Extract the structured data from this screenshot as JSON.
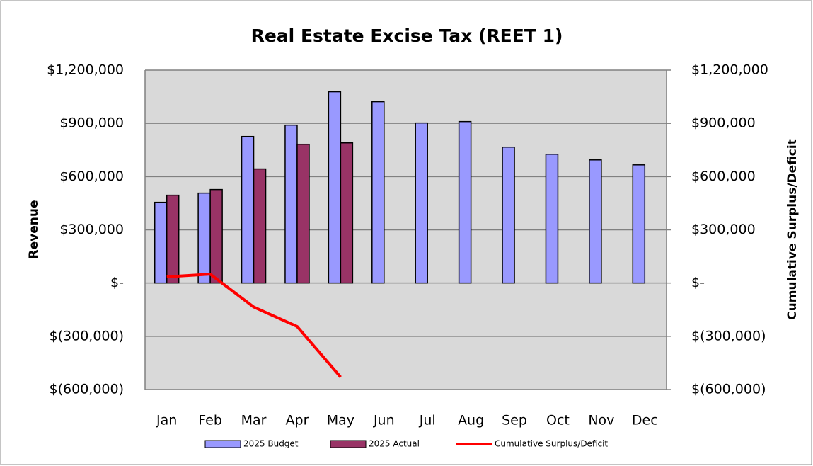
{
  "chart_data": {
    "type": "bar",
    "title": "Real Estate Excise Tax (REET 1)",
    "y_label": "Revenue",
    "y2_label": "Cumulative Surplus/Deficit",
    "categories": [
      "Jan",
      "Feb",
      "Mar",
      "Apr",
      "May",
      "Jun",
      "Jul",
      "Aug",
      "Sep",
      "Oct",
      "Nov",
      "Dec"
    ],
    "series": [
      {
        "name": "2025 Budget",
        "color": "#9999ff",
        "type": "bar",
        "values": [
          455000,
          507000,
          826000,
          890000,
          1078000,
          1022000,
          902000,
          910000,
          766000,
          726000,
          694000,
          666000
        ]
      },
      {
        "name": "2025 Actual",
        "color": "#993366",
        "type": "bar",
        "values": [
          495000,
          527000,
          643000,
          782000,
          790000,
          null,
          null,
          null,
          null,
          null,
          null,
          null
        ]
      },
      {
        "name": "Cumulative Surplus/Deficit",
        "color": "#ff0000",
        "type": "line",
        "axis": "y2",
        "values": [
          35000,
          50000,
          -135000,
          -245000,
          -530000,
          null,
          null,
          null,
          null,
          null,
          null,
          null
        ]
      }
    ],
    "ylim": [
      -600000,
      1200000
    ],
    "yticks": [
      {
        "value": -600000,
        "label": "$(600,000)"
      },
      {
        "value": -300000,
        "label": "$(300,000)"
      },
      {
        "value": 0,
        "label": "$-"
      },
      {
        "value": 300000,
        "label": "$300,000"
      },
      {
        "value": 600000,
        "label": "$600,000"
      },
      {
        "value": 900000,
        "label": "$900,000"
      },
      {
        "value": 1200000,
        "label": "$1,200,000"
      }
    ],
    "y2lim": [
      -600000,
      1200000
    ],
    "y2ticks": [
      {
        "value": -600000,
        "label": "$(600,000)"
      },
      {
        "value": -300000,
        "label": "$(300,000)"
      },
      {
        "value": 0,
        "label": "$-"
      },
      {
        "value": 300000,
        "label": "$300,000"
      },
      {
        "value": 600000,
        "label": "$600,000"
      },
      {
        "value": 900000,
        "label": "$900,000"
      },
      {
        "value": 1200000,
        "label": "$1,200,000"
      }
    ],
    "grid": true,
    "legend": "bottom"
  }
}
